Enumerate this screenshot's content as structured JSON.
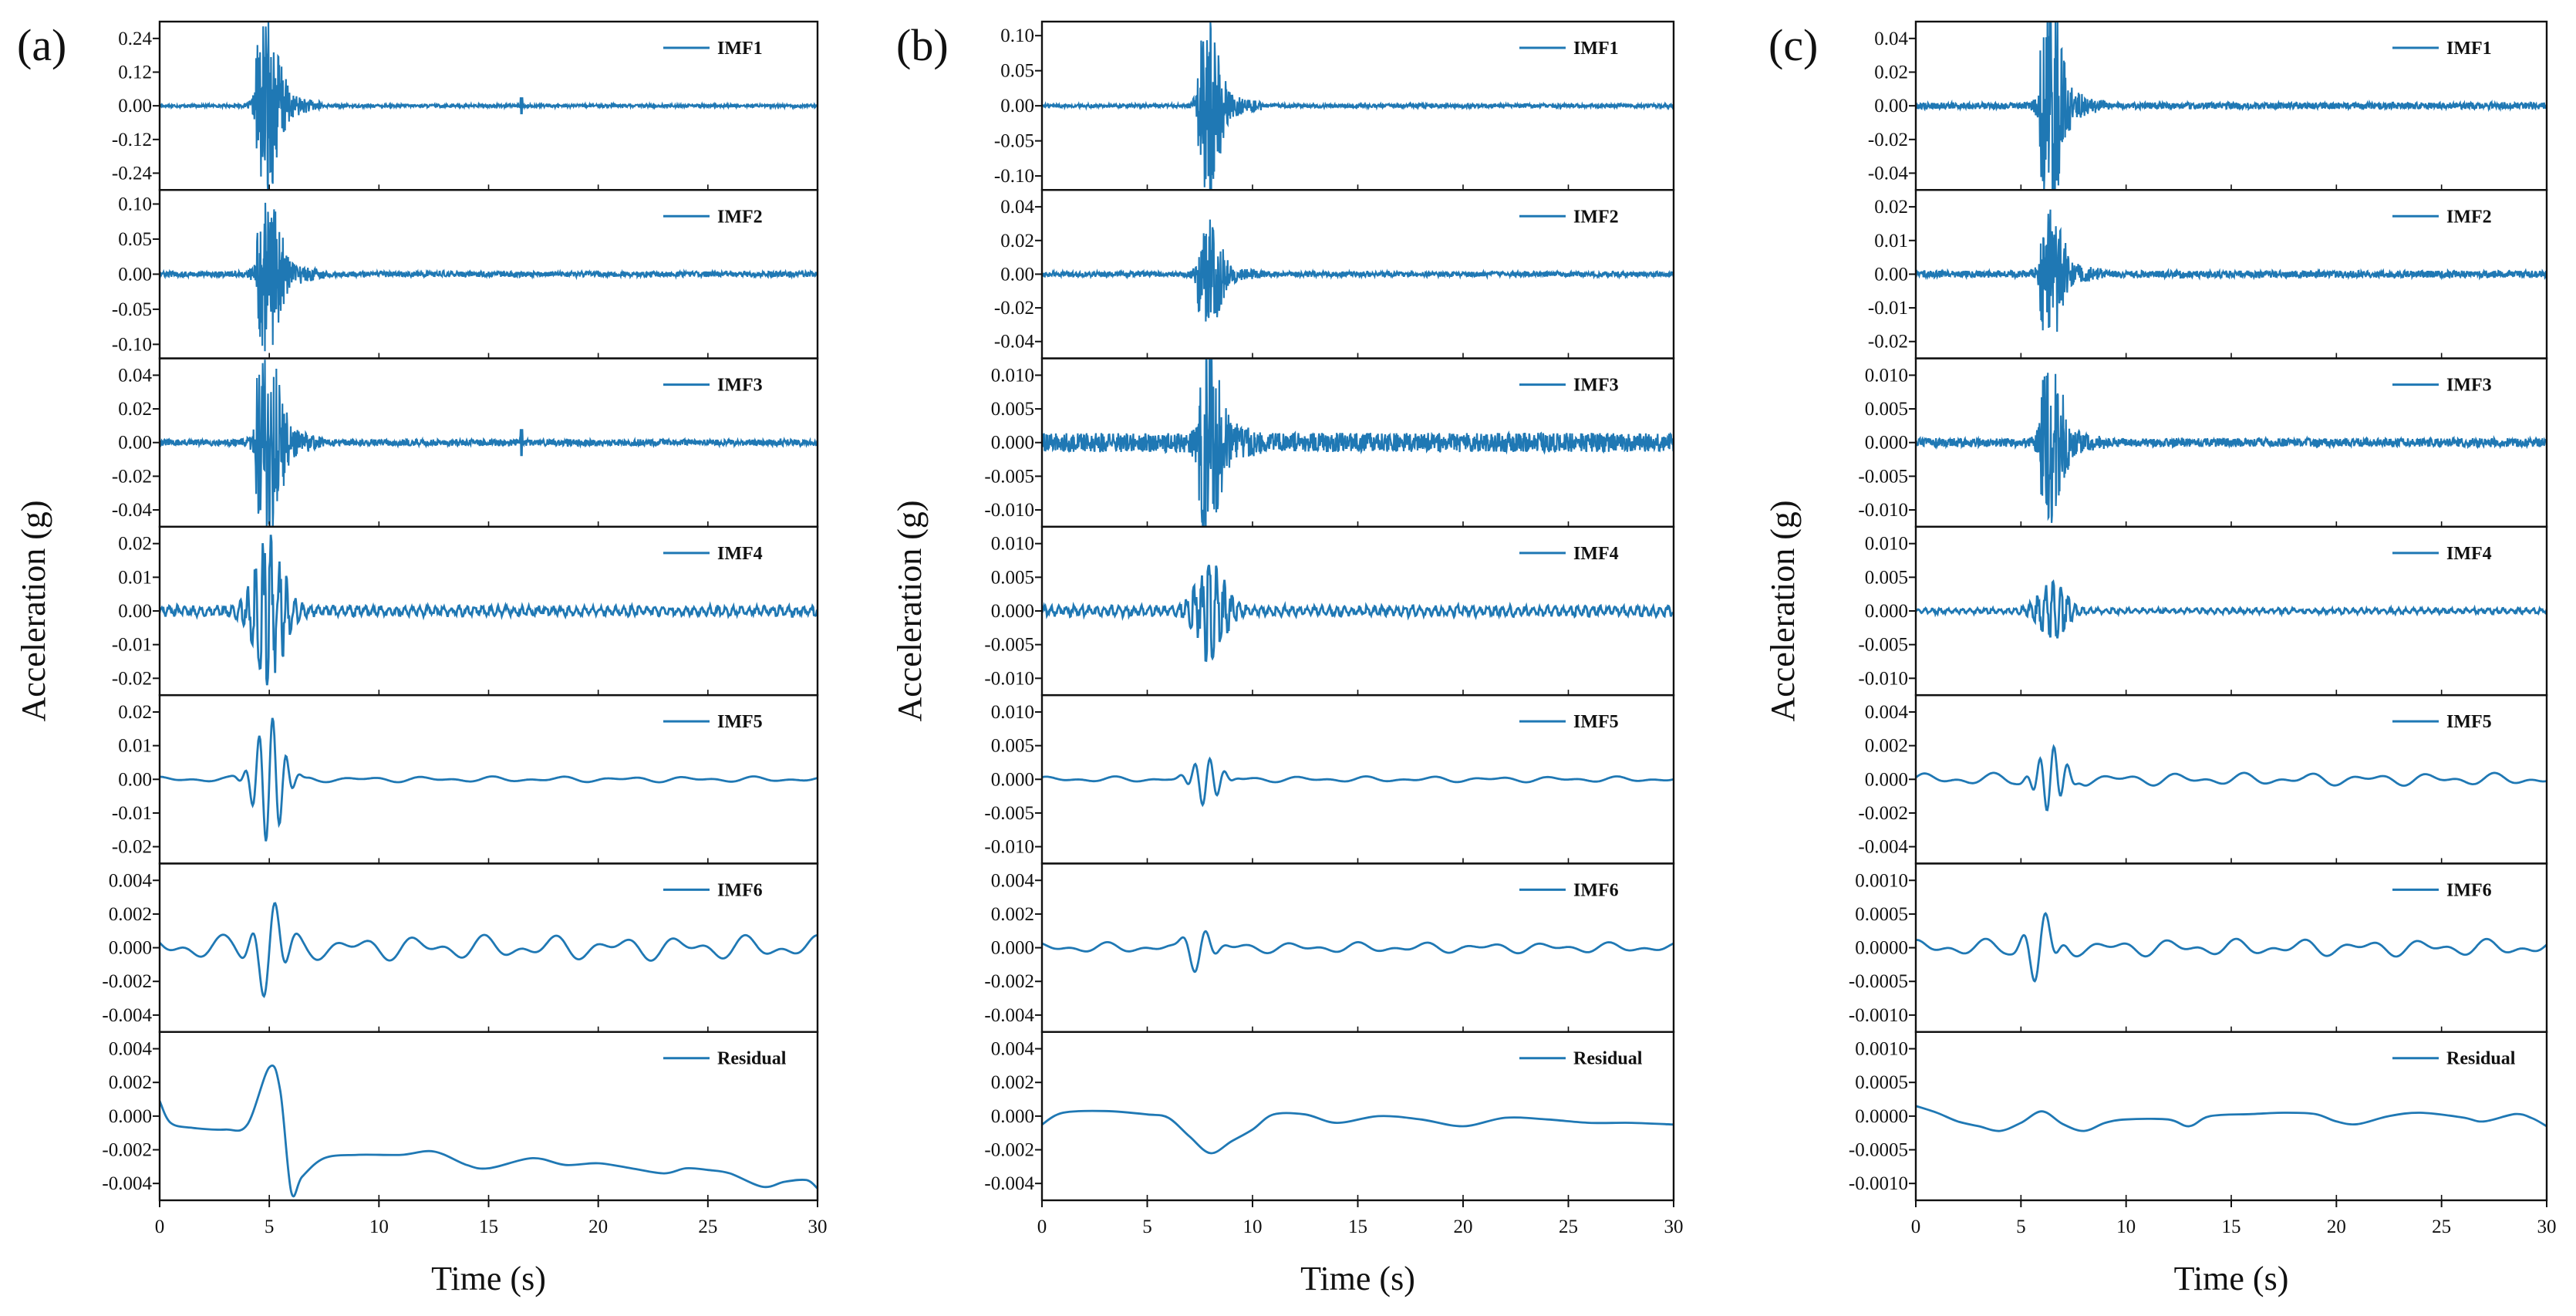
{
  "colors": {
    "series": "#1f78b4",
    "axis": "#111111"
  },
  "chart_data": [
    {
      "panel": "(a)",
      "type": "line",
      "xlabel": "Time (s)",
      "ylabel": "Acceleration (g)",
      "xlim": [
        0,
        30
      ],
      "xticks": [
        "0",
        "5",
        "10",
        "15",
        "20",
        "25",
        "30"
      ],
      "subplots": [
        {
          "name": "IMF1",
          "ylim": [
            -0.3,
            0.3
          ],
          "yticks": [
            "0.24",
            "0.12",
            "0.00",
            "-0.12",
            "-0.24"
          ],
          "tick_values": [
            0.24,
            0.12,
            0,
            -0.12,
            -0.24
          ],
          "peak_time": 5.0,
          "peak_amplitude": 0.24,
          "background": 0.004,
          "style": "noise",
          "spike": {
            "t": 16.5,
            "a": 0.03
          }
        },
        {
          "name": "IMF2",
          "ylim": [
            -0.12,
            0.12
          ],
          "yticks": [
            "0.10",
            "0.05",
            "0.00",
            "-0.05",
            "-0.10"
          ],
          "tick_values": [
            0.1,
            0.05,
            0,
            -0.05,
            -0.1
          ],
          "peak_time": 5.0,
          "peak_amplitude": 0.09,
          "background": 0.003,
          "style": "noise"
        },
        {
          "name": "IMF3",
          "ylim": [
            -0.05,
            0.05
          ],
          "yticks": [
            "0.04",
            "0.02",
            "0.00",
            "-0.02",
            "-0.04"
          ],
          "tick_values": [
            0.04,
            0.02,
            0,
            -0.02,
            -0.04
          ],
          "peak_time": 5.0,
          "peak_amplitude": 0.048,
          "background": 0.0015,
          "style": "noise",
          "spike": {
            "t": 16.5,
            "a": 0.008
          }
        },
        {
          "name": "IMF4",
          "ylim": [
            -0.025,
            0.025
          ],
          "yticks": [
            "0.02",
            "0.01",
            "0.00",
            "-0.01",
            "-0.02"
          ],
          "tick_values": [
            0.02,
            0.01,
            0,
            -0.01,
            -0.02
          ],
          "peak_time": 5.0,
          "peak_amplitude": 0.021,
          "background": 0.0012,
          "style": "osc"
        },
        {
          "name": "IMF5",
          "ylim": [
            -0.025,
            0.025
          ],
          "yticks": [
            "0.02",
            "0.01",
            "0.00",
            "-0.01",
            "-0.02"
          ],
          "tick_values": [
            0.02,
            0.01,
            0,
            -0.01,
            -0.02
          ],
          "peak_time": 5.0,
          "peak_amplitude": 0.019,
          "background": 0.0008,
          "style": "wave",
          "freq": 1.6
        },
        {
          "name": "IMF6",
          "ylim": [
            -0.005,
            0.005
          ],
          "yticks": [
            "0.004",
            "0.002",
            "0.000",
            "-0.002",
            "-0.004"
          ],
          "tick_values": [
            0.004,
            0.002,
            0,
            -0.002,
            -0.004
          ],
          "peak_time": 5.0,
          "peak_amplitude": 0.0032,
          "background": 0.0007,
          "style": "wave",
          "freq": 0.9
        },
        {
          "name": "Residual",
          "ylim": [
            -0.005,
            0.005
          ],
          "yticks": [
            "0.004",
            "0.002",
            "0.000",
            "-0.002",
            "-0.004"
          ],
          "tick_values": [
            0.004,
            0.002,
            0,
            -0.002,
            -0.004
          ],
          "style": "residual",
          "points": [
            [
              0,
              0.0009
            ],
            [
              0.5,
              -0.0004
            ],
            [
              1.5,
              -0.0007
            ],
            [
              3,
              -0.0008
            ],
            [
              4,
              -0.0005
            ],
            [
              5,
              0.0029
            ],
            [
              5.5,
              0.0015
            ],
            [
              6,
              -0.0045
            ],
            [
              6.5,
              -0.0036
            ],
            [
              7.5,
              -0.0025
            ],
            [
              9,
              -0.0023
            ],
            [
              11,
              -0.0023
            ],
            [
              12.5,
              -0.0021
            ],
            [
              14,
              -0.0029
            ],
            [
              15,
              -0.0031
            ],
            [
              17,
              -0.0025
            ],
            [
              18.5,
              -0.0029
            ],
            [
              20,
              -0.0028
            ],
            [
              21.5,
              -0.0031
            ],
            [
              23,
              -0.0034
            ],
            [
              24,
              -0.0031
            ],
            [
              25,
              -0.0032
            ],
            [
              26,
              -0.0034
            ],
            [
              27.5,
              -0.0042
            ],
            [
              28.5,
              -0.0039
            ],
            [
              29.5,
              -0.0038
            ],
            [
              30,
              -0.0043
            ]
          ]
        }
      ]
    },
    {
      "panel": "(b)",
      "type": "line",
      "xlabel": "Time (s)",
      "ylabel": "Acceleration (g)",
      "xlim": [
        0,
        30
      ],
      "xticks": [
        "0",
        "5",
        "10",
        "15",
        "20",
        "25",
        "30"
      ],
      "subplots": [
        {
          "name": "IMF1",
          "ylim": [
            -0.12,
            0.12
          ],
          "yticks": [
            "0.10",
            "0.05",
            "0.00",
            "-0.05",
            "-0.10"
          ],
          "tick_values": [
            0.1,
            0.05,
            0,
            -0.05,
            -0.1
          ],
          "peak_time": 8.0,
          "peak_amplitude": 0.095,
          "background": 0.002,
          "style": "noise"
        },
        {
          "name": "IMF2",
          "ylim": [
            -0.05,
            0.05
          ],
          "yticks": [
            "0.04",
            "0.02",
            "0.00",
            "-0.02",
            "-0.04"
          ],
          "tick_values": [
            0.04,
            0.02,
            0,
            -0.02,
            -0.04
          ],
          "peak_time": 8.0,
          "peak_amplitude": 0.025,
          "background": 0.0012,
          "style": "noise"
        },
        {
          "name": "IMF3",
          "ylim": [
            -0.0125,
            0.0125
          ],
          "yticks": [
            "0.010",
            "0.005",
            "0.000",
            "-0.005",
            "-0.010"
          ],
          "tick_values": [
            0.01,
            0.005,
            0,
            -0.005,
            -0.01
          ],
          "peak_time": 8.0,
          "peak_amplitude": 0.011,
          "background": 0.0011,
          "style": "noise"
        },
        {
          "name": "IMF4",
          "ylim": [
            -0.0125,
            0.0125
          ],
          "yticks": [
            "0.010",
            "0.005",
            "0.000",
            "-0.005",
            "-0.010"
          ],
          "tick_values": [
            0.01,
            0.005,
            0,
            -0.005,
            -0.01
          ],
          "peak_time": 8.0,
          "peak_amplitude": 0.007,
          "background": 0.0006,
          "style": "osc"
        },
        {
          "name": "IMF5",
          "ylim": [
            -0.0125,
            0.0125
          ],
          "yticks": [
            "0.010",
            "0.005",
            "0.000",
            "-0.005",
            "-0.010"
          ],
          "tick_values": [
            0.01,
            0.005,
            0,
            -0.005,
            -0.01
          ],
          "peak_time": 7.8,
          "peak_amplitude": 0.0036,
          "background": 0.0004,
          "style": "wave",
          "freq": 1.4
        },
        {
          "name": "IMF6",
          "ylim": [
            -0.005,
            0.005
          ],
          "yticks": [
            "0.004",
            "0.002",
            "0.000",
            "-0.002",
            "-0.004"
          ],
          "tick_values": [
            0.004,
            0.002,
            0,
            -0.002,
            -0.004
          ],
          "peak_time": 7.5,
          "peak_amplitude": 0.0013,
          "background": 0.0003,
          "style": "wave",
          "freq": 0.9
        },
        {
          "name": "Residual",
          "ylim": [
            -0.005,
            0.005
          ],
          "yticks": [
            "0.004",
            "0.002",
            "0.000",
            "-0.002",
            "-0.004"
          ],
          "tick_values": [
            0.004,
            0.002,
            0,
            -0.002,
            -0.004
          ],
          "style": "residual",
          "points": [
            [
              0,
              -0.0005
            ],
            [
              1,
              0.0002
            ],
            [
              3,
              0.0003
            ],
            [
              5,
              0.0001
            ],
            [
              6,
              -0.0001
            ],
            [
              7,
              -0.0012
            ],
            [
              8,
              -0.0022
            ],
            [
              9,
              -0.0015
            ],
            [
              10,
              -0.0008
            ],
            [
              11,
              0.0001
            ],
            [
              12.5,
              0.0001
            ],
            [
              14,
              -0.0004
            ],
            [
              16,
              0
            ],
            [
              18,
              -0.0002
            ],
            [
              20,
              -0.0006
            ],
            [
              22,
              -0.0001
            ],
            [
              24,
              -0.0002
            ],
            [
              26,
              -0.0004
            ],
            [
              28,
              -0.0004
            ],
            [
              30,
              -0.0005
            ]
          ]
        }
      ]
    },
    {
      "panel": "(c)",
      "type": "line",
      "xlabel": "Time (s)",
      "ylabel": "Acceleration (g)",
      "xlim": [
        0,
        30
      ],
      "xticks": [
        "0",
        "5",
        "10",
        "15",
        "20",
        "25",
        "30"
      ],
      "subplots": [
        {
          "name": "IMF1",
          "ylim": [
            -0.05,
            0.05
          ],
          "yticks": [
            "0.04",
            "0.02",
            "0.00",
            "-0.02",
            "-0.04"
          ],
          "tick_values": [
            0.04,
            0.02,
            0,
            -0.02,
            -0.04
          ],
          "peak_time": 6.5,
          "peak_amplitude": 0.045,
          "background": 0.0015,
          "style": "noise"
        },
        {
          "name": "IMF2",
          "ylim": [
            -0.025,
            0.025
          ],
          "yticks": [
            "0.02",
            "0.01",
            "0.00",
            "-0.01",
            "-0.02"
          ],
          "tick_values": [
            0.02,
            0.01,
            0,
            -0.01,
            -0.02
          ],
          "peak_time": 6.5,
          "peak_amplitude": 0.015,
          "background": 0.0008,
          "style": "noise"
        },
        {
          "name": "IMF3",
          "ylim": [
            -0.0125,
            0.0125
          ],
          "yticks": [
            "0.010",
            "0.005",
            "0.000",
            "-0.005",
            "-0.010"
          ],
          "tick_values": [
            0.01,
            0.005,
            0,
            -0.005,
            -0.01
          ],
          "peak_time": 6.5,
          "peak_amplitude": 0.009,
          "background": 0.0005,
          "style": "noise"
        },
        {
          "name": "IMF4",
          "ylim": [
            -0.0125,
            0.0125
          ],
          "yticks": [
            "0.010",
            "0.005",
            "0.000",
            "-0.005",
            "-0.010"
          ],
          "tick_values": [
            0.01,
            0.005,
            0,
            -0.005,
            -0.01
          ],
          "peak_time": 6.5,
          "peak_amplitude": 0.004,
          "background": 0.0003,
          "style": "osc"
        },
        {
          "name": "IMF5",
          "ylim": [
            -0.005,
            0.005
          ],
          "yticks": [
            "0.004",
            "0.002",
            "0.000",
            "-0.002",
            "-0.004"
          ],
          "tick_values": [
            0.004,
            0.002,
            0,
            -0.002,
            -0.004
          ],
          "peak_time": 6.4,
          "peak_amplitude": 0.0019,
          "background": 0.00035,
          "style": "wave",
          "freq": 1.5
        },
        {
          "name": "IMF6",
          "ylim": [
            -0.00125,
            0.00125
          ],
          "yticks": [
            "0.0010",
            "0.0005",
            "0.0000",
            "-0.0005",
            "-0.0010"
          ],
          "tick_values": [
            0.001,
            0.0005,
            0,
            -0.0005,
            -0.001
          ],
          "peak_time": 5.9,
          "peak_amplitude": 0.00053,
          "background": 0.00012,
          "style": "wave",
          "freq": 0.9
        },
        {
          "name": "Residual",
          "ylim": [
            -0.00125,
            0.00125
          ],
          "yticks": [
            "0.0010",
            "0.0005",
            "0.0000",
            "-0.0005",
            "-0.0010"
          ],
          "tick_values": [
            0.001,
            0.0005,
            0,
            -0.0005,
            -0.001
          ],
          "style": "residual",
          "points": [
            [
              0,
              0.00015
            ],
            [
              1,
              5e-05
            ],
            [
              2,
              -8e-05
            ],
            [
              3,
              -0.00015
            ],
            [
              4,
              -0.00022
            ],
            [
              5,
              -0.0001
            ],
            [
              6,
              7e-05
            ],
            [
              7,
              -0.00012
            ],
            [
              8,
              -0.00022
            ],
            [
              9,
              -0.0001
            ],
            [
              10,
              -5e-05
            ],
            [
              12,
              -5e-05
            ],
            [
              13,
              -0.00015
            ],
            [
              14,
              0
            ],
            [
              16,
              3e-05
            ],
            [
              17.5,
              5e-05
            ],
            [
              19,
              3e-05
            ],
            [
              20,
              -8e-05
            ],
            [
              21,
              -0.00012
            ],
            [
              22.5,
              0
            ],
            [
              24,
              5e-05
            ],
            [
              26,
              -2e-05
            ],
            [
              27,
              -8e-05
            ],
            [
              28.5,
              3e-05
            ],
            [
              29.3,
              -3e-05
            ],
            [
              30,
              -0.00015
            ]
          ]
        }
      ]
    }
  ]
}
